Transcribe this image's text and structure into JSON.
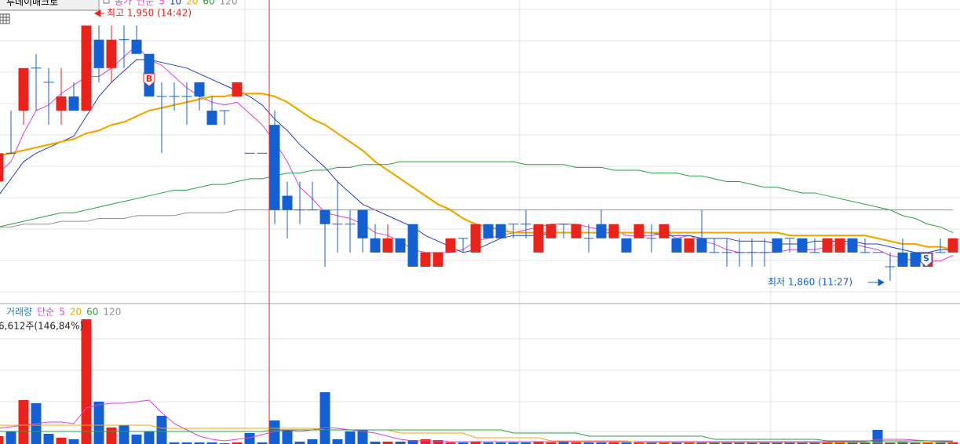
{
  "chart_data": {
    "type": "candlestick",
    "button": "투데이매크로",
    "price_title": "종가",
    "price_legend_prefix": "단순",
    "ylim": [
      1852,
      1959
    ],
    "up_color": "#e8231b",
    "down_color": "#1560d0",
    "open": [
      1895,
      1905,
      1920,
      1935,
      1930,
      1920,
      1925,
      1920,
      1945,
      1935,
      1945,
      1945,
      1940,
      1925,
      1925,
      1925,
      1930,
      1920,
      1920,
      1925,
      1905,
      1905,
      1915,
      1890,
      1885,
      1885,
      1885,
      1880,
      1880,
      1885,
      1875,
      1870,
      1875,
      1880,
      1865,
      1865,
      1870,
      1875,
      1870,
      1880,
      1880,
      1880,
      1880,
      1870,
      1875,
      1880,
      1875,
      1875,
      1880,
      1875,
      1875,
      1875,
      1875,
      1875,
      1875,
      1870,
      1875,
      1870,
      1870,
      1870,
      1870,
      1870,
      1875,
      1875,
      1875,
      1870,
      1870,
      1870,
      1875,
      1870,
      1870,
      1865,
      1870,
      1870,
      1865,
      1870,
      1870
    ],
    "high": [
      1910,
      1920,
      1935,
      1940,
      1935,
      1935,
      1930,
      1950,
      1950,
      1950,
      1950,
      1950,
      1940,
      1930,
      1930,
      1930,
      1930,
      1925,
      1920,
      1930,
      1905,
      1905,
      1920,
      1895,
      1895,
      1895,
      1885,
      1895,
      1885,
      1885,
      1880,
      1880,
      1875,
      1880,
      1870,
      1870,
      1875,
      1875,
      1880,
      1880,
      1880,
      1880,
      1885,
      1880,
      1880,
      1880,
      1880,
      1880,
      1885,
      1880,
      1875,
      1880,
      1880,
      1880,
      1875,
      1875,
      1885,
      1875,
      1875,
      1875,
      1875,
      1875,
      1875,
      1875,
      1875,
      1875,
      1875,
      1875,
      1875,
      1875,
      1870,
      1870,
      1875,
      1870,
      1870,
      1875,
      1875
    ],
    "low": [
      1895,
      1905,
      1915,
      1920,
      1915,
      1915,
      1920,
      1920,
      1930,
      1930,
      1935,
      1940,
      1925,
      1905,
      1920,
      1915,
      1920,
      1915,
      1915,
      1925,
      1905,
      1905,
      1880,
      1875,
      1880,
      1885,
      1865,
      1870,
      1870,
      1870,
      1870,
      1870,
      1870,
      1865,
      1865,
      1865,
      1870,
      1870,
      1870,
      1875,
      1875,
      1875,
      1875,
      1870,
      1875,
      1875,
      1875,
      1870,
      1875,
      1875,
      1870,
      1875,
      1870,
      1875,
      1870,
      1870,
      1870,
      1870,
      1865,
      1865,
      1865,
      1865,
      1870,
      1870,
      1870,
      1870,
      1870,
      1870,
      1870,
      1870,
      1870,
      1860,
      1865,
      1865,
      1865,
      1870,
      1870
    ],
    "close": [
      1905,
      1905,
      1935,
      1935,
      1930,
      1925,
      1920,
      1950,
      1935,
      1945,
      1945,
      1940,
      1925,
      1925,
      1925,
      1925,
      1925,
      1915,
      1920,
      1930,
      1905,
      1905,
      1885,
      1885,
      1885,
      1885,
      1880,
      1880,
      1880,
      1875,
      1870,
      1875,
      1870,
      1865,
      1870,
      1870,
      1875,
      1875,
      1880,
      1875,
      1875,
      1880,
      1880,
      1880,
      1880,
      1880,
      1880,
      1875,
      1875,
      1880,
      1870,
      1880,
      1875,
      1880,
      1870,
      1875,
      1870,
      1870,
      1870,
      1870,
      1870,
      1870,
      1870,
      1875,
      1870,
      1870,
      1875,
      1875,
      1870,
      1870,
      1870,
      1865,
      1865,
      1865,
      1870,
      1870,
      1875
    ],
    "series": [
      {
        "name": "5",
        "color": "#e040d8",
        "values": [
          1898,
          1902,
          1912,
          1920,
          1922,
          1926,
          1929,
          1932,
          1932,
          1935,
          1939,
          1943,
          1938,
          1936,
          1932,
          1928,
          1925,
          1923,
          1922,
          1923,
          1919,
          1915,
          1909,
          1902,
          1893,
          1889,
          1884,
          1883,
          1882,
          1880,
          1877,
          1876,
          1874,
          1871,
          1870,
          1870,
          1870,
          1871,
          1874,
          1875,
          1876,
          1877,
          1878,
          1879,
          1880,
          1880,
          1880,
          1879,
          1878,
          1878,
          1876,
          1876,
          1876,
          1877,
          1875,
          1876,
          1874,
          1873,
          1871,
          1870,
          1870,
          1870,
          1870,
          1871,
          1871,
          1871,
          1872,
          1873,
          1873,
          1872,
          1871,
          1869,
          1868,
          1867,
          1867,
          1867,
          1869
        ]
      },
      {
        "name": "10",
        "color": "#2040c0",
        "values": [
          1890,
          1896,
          1902,
          1905,
          1907,
          1909,
          1911,
          1918,
          1925,
          1930,
          1934,
          1938,
          1938,
          1937,
          1936,
          1935,
          1933,
          1931,
          1929,
          1927,
          1925,
          1922,
          1917,
          1913,
          1908,
          1904,
          1900,
          1895,
          1891,
          1887,
          1885,
          1883,
          1881,
          1879,
          1876,
          1874,
          1872,
          1870,
          1871,
          1873,
          1875,
          1876,
          1876,
          1876,
          1877,
          1877,
          1877,
          1877,
          1877,
          1877,
          1877,
          1877,
          1877,
          1876,
          1876,
          1876,
          1875,
          1875,
          1875,
          1874,
          1874,
          1874,
          1873,
          1873,
          1873,
          1874,
          1874,
          1874,
          1874,
          1873,
          1873,
          1872,
          1871,
          1870,
          1870,
          1871,
          1871
        ]
      },
      {
        "name": "20",
        "color": "#f0a800",
        "values": [
          1904,
          1905,
          1906,
          1907,
          1908,
          1909,
          1910,
          1912,
          1913,
          1915,
          1916,
          1918,
          1920,
          1921,
          1922,
          1923,
          1924,
          1925,
          1925,
          1926,
          1926,
          1926,
          1925,
          1923,
          1920,
          1917,
          1915,
          1912,
          1909,
          1906,
          1902,
          1899,
          1896,
          1893,
          1890,
          1887,
          1885,
          1882,
          1880,
          1879,
          1878,
          1877,
          1877,
          1877,
          1877,
          1877,
          1877,
          1877,
          1877,
          1877,
          1877,
          1877,
          1877,
          1877,
          1877,
          1877,
          1877,
          1877,
          1877,
          1877,
          1877,
          1877,
          1877,
          1876,
          1876,
          1876,
          1876,
          1876,
          1876,
          1876,
          1875,
          1874,
          1873,
          1873,
          1872,
          1872,
          1871
        ]
      },
      {
        "name": "60",
        "color": "#2aa040",
        "values": [
          1879,
          1880,
          1881,
          1882,
          1883,
          1884,
          1884,
          1885,
          1886,
          1887,
          1888,
          1889,
          1890,
          1891,
          1892,
          1892,
          1893,
          1894,
          1894,
          1895,
          1896,
          1896,
          1897,
          1898,
          1898,
          1899,
          1899,
          1900,
          1900,
          1901,
          1901,
          1901,
          1902,
          1902,
          1902,
          1902,
          1902,
          1902,
          1902,
          1902,
          1902,
          1902,
          1901,
          1901,
          1901,
          1901,
          1900,
          1900,
          1900,
          1899,
          1899,
          1899,
          1898,
          1898,
          1898,
          1897,
          1897,
          1896,
          1895,
          1895,
          1894,
          1893,
          1893,
          1892,
          1891,
          1891,
          1890,
          1889,
          1888,
          1887,
          1886,
          1885,
          1883,
          1882,
          1880,
          1879,
          1877
        ]
      },
      {
        "name": "120",
        "color": "#909090",
        "values": [
          1879,
          1879,
          1880,
          1880,
          1880,
          1881,
          1881,
          1881,
          1882,
          1882,
          1882,
          1883,
          1883,
          1883,
          1883,
          1884,
          1884,
          1884,
          1884,
          1885,
          1885,
          1885,
          1885,
          1885,
          1885,
          1885,
          1885,
          1885,
          1885,
          1885,
          1885,
          1885,
          1885,
          1885,
          1885,
          1885,
          1885,
          1885,
          1885,
          1885,
          1885,
          1885,
          1885,
          1885,
          1885,
          1885,
          1885,
          1885,
          1885,
          1885,
          1885,
          1885,
          1885,
          1885,
          1885,
          1885,
          1885,
          1885,
          1885,
          1885,
          1885,
          1885,
          1885,
          1885,
          1885,
          1885,
          1885,
          1885,
          1885,
          1885,
          1885,
          1885,
          1885,
          1885,
          1885,
          1885,
          1885
        ]
      }
    ],
    "high_label": "최고 1,950 (14:42)",
    "low_label": "최저 1,860 (11:27)",
    "buy_signal": "B",
    "sell_signal": "S",
    "volume": {
      "title": "거래량",
      "legend_prefix": "단순",
      "info": "6,612주(146,84%)",
      "vlim": [
        0,
        160
      ],
      "values": [
        10,
        16,
        56,
        52,
        13,
        8,
        6,
        159,
        54,
        21,
        24,
        12,
        16,
        36,
        2,
        2,
        2,
        2,
        1,
        2,
        14,
        2,
        30,
        18,
        3,
        6,
        66,
        6,
        16,
        18,
        3,
        3,
        3,
        5,
        6,
        5,
        2,
        2,
        3,
        2,
        2,
        2,
        2,
        3,
        2,
        4,
        2,
        2,
        2,
        2,
        2,
        2,
        2,
        2,
        2,
        2,
        2,
        2,
        2,
        2,
        2,
        2,
        2,
        2,
        2,
        2,
        2,
        2,
        2,
        2,
        18,
        2,
        3,
        2,
        2,
        2,
        2
      ],
      "series": [
        {
          "name": "5",
          "color": "#e040d8",
          "values": [
            20,
            22,
            24,
            26,
            28,
            28,
            26,
            46,
            50,
            52,
            52,
            54,
            56,
            40,
            26,
            18,
            10,
            6,
            4,
            6,
            8,
            12,
            16,
            18,
            16,
            18,
            21,
            20,
            18,
            16,
            14,
            10,
            6,
            4,
            4,
            4,
            3,
            3,
            3,
            3,
            3,
            3,
            3,
            3,
            3,
            3,
            3,
            3,
            3,
            3,
            3,
            3,
            3,
            3,
            3,
            3,
            3,
            3,
            3,
            3,
            3,
            3,
            3,
            3,
            3,
            3,
            3,
            3,
            3,
            3,
            6,
            6,
            6,
            5,
            4,
            3,
            3
          ]
        },
        {
          "name": "20",
          "color": "#f0a800",
          "values": [
            24,
            24,
            24,
            24,
            24,
            24,
            24,
            24,
            24,
            24,
            24,
            24,
            24,
            20,
            20,
            20,
            20,
            20,
            20,
            20,
            20,
            20,
            20,
            20,
            20,
            20,
            18,
            18,
            18,
            18,
            18,
            18,
            14,
            14,
            14,
            14,
            14,
            14,
            8,
            8,
            8,
            8,
            8,
            8,
            4,
            4,
            4,
            4,
            4,
            4,
            4,
            2,
            2,
            2,
            2,
            2,
            2,
            2,
            2,
            2,
            2,
            2,
            2,
            2,
            2,
            2,
            2,
            2,
            2,
            2,
            2,
            2,
            2,
            2,
            2,
            2,
            2
          ]
        },
        {
          "name": "60",
          "color": "#2aa040",
          "values": [
            16,
            16,
            16,
            16,
            16,
            16,
            16,
            16,
            16,
            16,
            16,
            16,
            16,
            16,
            16,
            16,
            16,
            16,
            16,
            16,
            16,
            16,
            18,
            18,
            18,
            18,
            18,
            18,
            18,
            18,
            18,
            18,
            18,
            18,
            18,
            18,
            18,
            18,
            18,
            18,
            18,
            14,
            14,
            14,
            14,
            14,
            14,
            10,
            10,
            10,
            10,
            10,
            10,
            10,
            10,
            10,
            10,
            6,
            6,
            6,
            6,
            6,
            6,
            6,
            6,
            6,
            4,
            4,
            4,
            4,
            4,
            4,
            4,
            4,
            4,
            4,
            4
          ]
        }
      ],
      "extra_legend": {
        "name": "120",
        "color": "#909090"
      }
    }
  }
}
